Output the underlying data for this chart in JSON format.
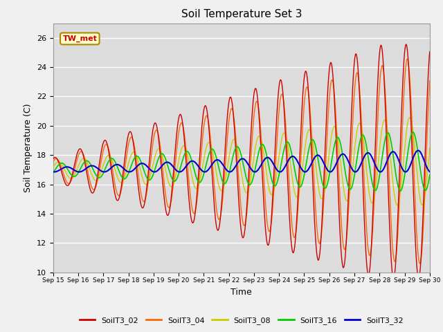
{
  "title": "Soil Temperature Set 3",
  "xlabel": "Time",
  "ylabel": "Soil Temperature (C)",
  "ylim": [
    10,
    27
  ],
  "yticks": [
    10,
    12,
    14,
    16,
    18,
    20,
    22,
    24,
    26
  ],
  "annotation": "TW_met",
  "annotation_color": "#cc0000",
  "annotation_bg": "#ffffcc",
  "annotation_border": "#aa8800",
  "colors": {
    "SoilT3_02": "#cc0000",
    "SoilT3_04": "#ff6600",
    "SoilT3_08": "#cccc00",
    "SoilT3_16": "#00cc00",
    "SoilT3_32": "#0000cc"
  },
  "fig_bg_color": "#f0f0f0",
  "ax_bg_color": "#dcdcdc",
  "grid_color": "#ffffff",
  "n_points": 720,
  "base_temp": 17.0,
  "base_trend": 0.04
}
